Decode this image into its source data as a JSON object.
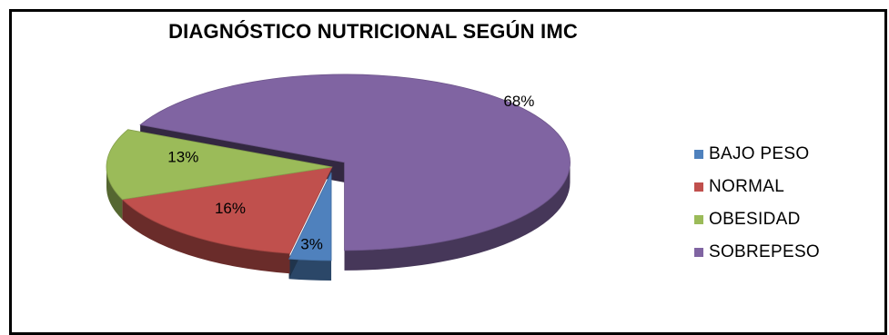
{
  "chart_data": {
    "type": "pie",
    "title": "DIAGNÓSTICO NUTRICIONAL SEGÚN IMC",
    "slices": [
      {
        "name": "BAJO PESO",
        "value": 3,
        "label": "3%",
        "color": "#4F81BD"
      },
      {
        "name": "NORMAL",
        "value": 16,
        "label": "16%",
        "color": "#C0504D"
      },
      {
        "name": "OBESIDAD",
        "value": 13,
        "label": "13%",
        "color": "#9BBB59"
      },
      {
        "name": "SOBREPESO",
        "value": 68,
        "label": "68%",
        "color": "#8064A2"
      }
    ],
    "style": "3d-exploded",
    "legend_position": "right"
  }
}
